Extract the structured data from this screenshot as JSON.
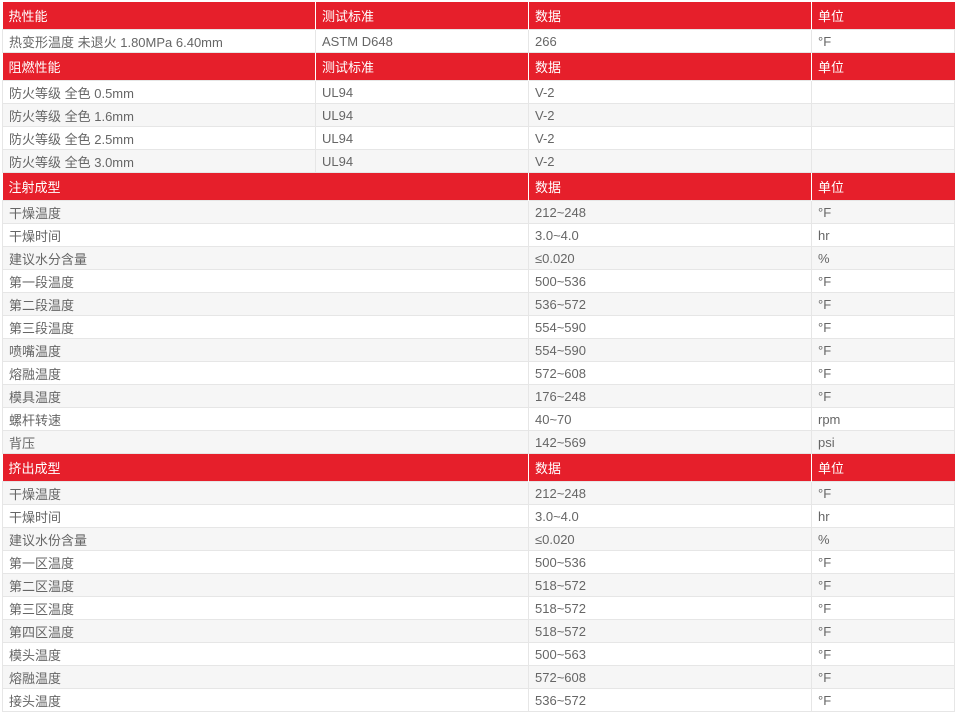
{
  "colors": {
    "header_bg": "#e61f2b",
    "header_text": "#ffffff",
    "text": "#666666",
    "alt_row": "#f6f6f6"
  },
  "sections": [
    {
      "header": [
        "热性能",
        "测试标准",
        "数据",
        "单位"
      ],
      "rows": [
        [
          "热变形温度   未退火 1.80MPa 6.40mm",
          "ASTM D648",
          "266",
          "°F"
        ]
      ]
    },
    {
      "header": [
        "阻燃性能",
        "测试标准",
        "数据",
        "单位"
      ],
      "rows": [
        [
          "防火等级   全色 0.5mm",
          "UL94",
          "V-2",
          ""
        ],
        [
          "防火等级   全色 1.6mm",
          "UL94",
          "V-2",
          ""
        ],
        [
          "防火等级   全色 2.5mm",
          "UL94",
          "V-2",
          ""
        ],
        [
          "防火等级   全色 3.0mm",
          "UL94",
          "V-2",
          ""
        ]
      ]
    },
    {
      "header": [
        "注射成型",
        "数据",
        "单位"
      ],
      "rows": [
        [
          "干燥温度",
          "212~248",
          "°F"
        ],
        [
          "干燥时间",
          "3.0~4.0",
          "hr"
        ],
        [
          "建议水分含量",
          "≤0.020",
          "%"
        ],
        [
          "第一段温度",
          "500~536",
          "°F"
        ],
        [
          "第二段温度",
          "536~572",
          "°F"
        ],
        [
          "第三段温度",
          "554~590",
          "°F"
        ],
        [
          "喷嘴温度",
          "554~590",
          "°F"
        ],
        [
          "熔融温度",
          "572~608",
          "°F"
        ],
        [
          "模具温度",
          "176~248",
          "°F"
        ],
        [
          "螺杆转速",
          "40~70",
          "rpm"
        ],
        [
          "背压",
          "142~569",
          "psi"
        ]
      ]
    },
    {
      "header": [
        "挤出成型",
        "数据",
        "单位"
      ],
      "rows": [
        [
          "干燥温度",
          "212~248",
          "°F"
        ],
        [
          "干燥时间",
          "3.0~4.0",
          "hr"
        ],
        [
          "建议水份含量",
          "≤0.020",
          "%"
        ],
        [
          "第一区温度",
          "500~536",
          "°F"
        ],
        [
          "第二区温度",
          "518~572",
          "°F"
        ],
        [
          "第三区温度",
          "518~572",
          "°F"
        ],
        [
          "第四区温度",
          "518~572",
          "°F"
        ],
        [
          "模头温度",
          "500~563",
          "°F"
        ],
        [
          "熔融温度",
          "572~608",
          "°F"
        ],
        [
          "接头温度",
          "536~572",
          "°F"
        ]
      ]
    }
  ]
}
